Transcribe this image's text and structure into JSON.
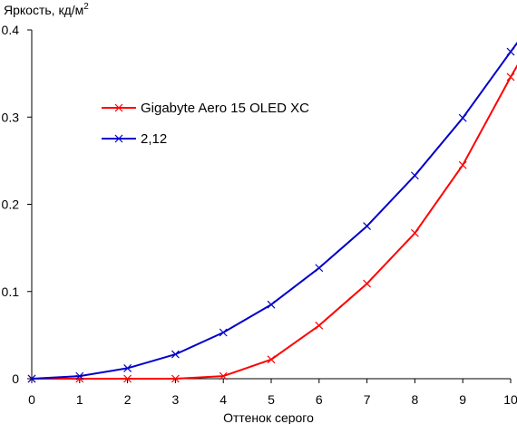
{
  "chart_data": {
    "type": "line",
    "ylabel": "Яркость, кд/м",
    "ylabel_superscript": "2",
    "xlabel": "Оттенок серого",
    "xlim": [
      0,
      10
    ],
    "ylim": [
      0,
      0.4
    ],
    "x_ticks": [
      "0",
      "1",
      "2",
      "3",
      "4",
      "5",
      "6",
      "7",
      "8",
      "9",
      "10"
    ],
    "y_ticks": [
      "0",
      "0.1",
      "0.2",
      "0.3",
      "0.4"
    ],
    "grid": false,
    "legend_position": "upper-left",
    "series": [
      {
        "name": "Gigabyte Aero 15 OLED XC",
        "color": "#ff0000",
        "marker": "x",
        "x": [
          0,
          1,
          2,
          3,
          4,
          5,
          6,
          7,
          8,
          9,
          10
        ],
        "y": [
          0,
          0,
          0,
          0,
          0.003,
          0.022,
          0.061,
          0.109,
          0.167,
          0.245,
          0.346
        ],
        "line_end": [
          10.15,
          0.36
        ]
      },
      {
        "name": "2,12",
        "color": "#0000cc",
        "marker": "x",
        "x": [
          0,
          1,
          2,
          3,
          4,
          5,
          6,
          7,
          8,
          9,
          10
        ],
        "y": [
          0,
          0.003,
          0.012,
          0.028,
          0.053,
          0.085,
          0.127,
          0.175,
          0.233,
          0.299,
          0.375
        ],
        "line_end": [
          10.15,
          0.386
        ]
      }
    ]
  }
}
